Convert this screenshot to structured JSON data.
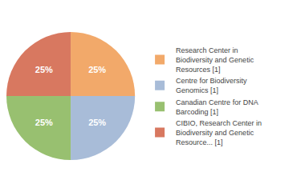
{
  "chart_data": {
    "type": "pie",
    "categories": [
      "Research Center in\nBiodiversity and Genetic\nResources [1]",
      "Centre for Biodiversity\nGenomics [1]",
      "Canadian Centre for DNA\nBarcoding [1]",
      "CIBIO, Research Center in\nBiodiversity and Genetic\nResource... [1]"
    ],
    "values": [
      25,
      25,
      25,
      25
    ],
    "value_labels": [
      "25%",
      "25%",
      "25%",
      "25%"
    ],
    "colors": [
      "#f2a96a",
      "#a8bcd8",
      "#98c070",
      "#d87860"
    ],
    "data_labels": true,
    "legend": "right"
  }
}
